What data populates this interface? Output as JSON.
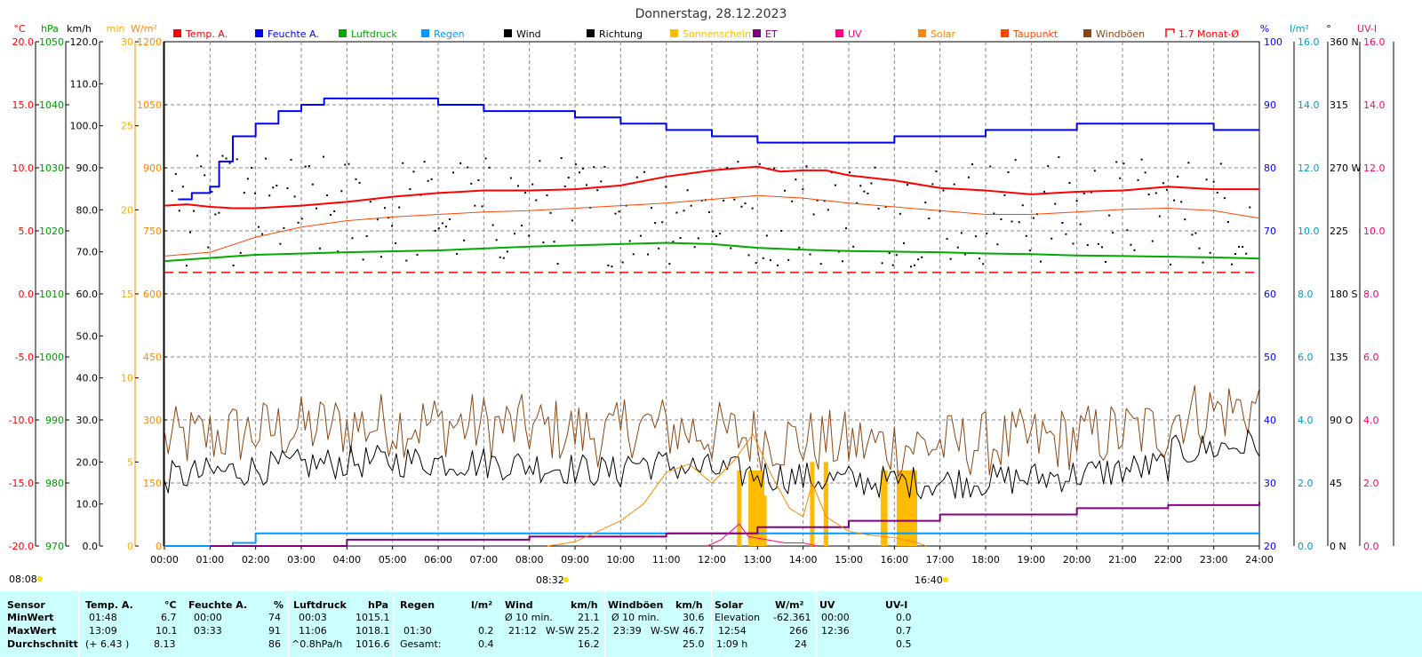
{
  "chart_data": {
    "type": "line",
    "title": "Donnerstag, 28.12.2023",
    "x": {
      "ticks": [
        "00:00",
        "01:00",
        "02:00",
        "03:00",
        "04:00",
        "05:00",
        "06:00",
        "07:00",
        "08:00",
        "09:00",
        "10:00",
        "11:00",
        "12:00",
        "13:00",
        "14:00",
        "15:00",
        "16:00",
        "17:00",
        "18:00",
        "19:00",
        "20:00",
        "21:00",
        "22:00",
        "23:00",
        "24:00"
      ],
      "range_hours": [
        0,
        24
      ]
    },
    "left_axes": [
      {
        "unit": "°C",
        "color": "#ff0000",
        "min": -20,
        "max": 20,
        "ticks": [
          "20.0",
          "15.0",
          "10.0",
          "5.0",
          "0.0",
          "-5.0",
          "-10.0",
          "-15.0",
          "-20.0"
        ]
      },
      {
        "unit": "hPa",
        "color": "#009900",
        "min": 970,
        "max": 1050,
        "ticks": [
          "1050",
          "1040",
          "1030",
          "1020",
          "1010",
          "1000",
          "990",
          "980",
          "970"
        ]
      },
      {
        "unit": "km/h",
        "color": "#000000",
        "min": 0,
        "max": 120,
        "ticks": [
          "120.0",
          "110.0",
          "100.0",
          "90.0",
          "80.0",
          "70.0",
          "60.0",
          "50.0",
          "40.0",
          "30.0",
          "20.0",
          "10.0",
          "0.0"
        ]
      },
      {
        "unit": "min",
        "color": "#ffaa00",
        "min": 0,
        "max": 30,
        "ticks": [
          "30",
          "25",
          "20",
          "15",
          "10",
          "5",
          "0"
        ]
      },
      {
        "unit": "W/m²",
        "color": "#ff8800",
        "min": 0,
        "max": 1200,
        "ticks": [
          "1200",
          "1050",
          "900",
          "750",
          "600",
          "450",
          "300",
          "150",
          "0"
        ]
      }
    ],
    "right_axes": [
      {
        "unit": "%",
        "color": "#0000ff",
        "min": 20,
        "max": 100,
        "ticks": [
          "100",
          "90",
          "80",
          "70",
          "60",
          "50",
          "40",
          "30",
          "20"
        ]
      },
      {
        "unit": "l/m²",
        "color": "#0099cc",
        "min": 0,
        "max": 16,
        "ticks": [
          "16.0",
          "14.0",
          "12.0",
          "10.0",
          "8.0",
          "6.0",
          "4.0",
          "2.0",
          "0.0"
        ]
      },
      {
        "unit": "°",
        "color": "#000000",
        "min": 0,
        "max": 360,
        "ticks": [
          "360 N",
          "315",
          "270 W",
          "225",
          "180 S",
          "135",
          "90 O",
          "45",
          "0 N"
        ]
      },
      {
        "unit": "UV-I",
        "color": "#ff0066",
        "min": 0,
        "max": 16,
        "ticks": [
          "16.0",
          "14.0",
          "12.0",
          "10.0",
          "8.0",
          "6.0",
          "4.0",
          "2.0",
          "0.0"
        ]
      }
    ],
    "legend": [
      {
        "name": "Temp. A.",
        "color": "#ff0000"
      },
      {
        "name": "Feuchte A.",
        "color": "#0000ff"
      },
      {
        "name": "Luftdruck",
        "color": "#00aa00"
      },
      {
        "name": "Regen",
        "color": "#0099ff"
      },
      {
        "name": "Wind",
        "color": "#000000"
      },
      {
        "name": "Richtung",
        "color": "#000000"
      },
      {
        "name": "Sonnenschein",
        "color": "#ffbb00"
      },
      {
        "name": "ET",
        "color": "#800080"
      },
      {
        "name": "UV",
        "color": "#ff0088"
      },
      {
        "name": "Solar",
        "color": "#ff8800"
      },
      {
        "name": "Taupunkt",
        "color": "#ff4400"
      },
      {
        "name": "Windböen",
        "color": "#8b4513"
      },
      {
        "name": "1.7 Monat-Ø",
        "color": "#ff0000"
      }
    ],
    "sun": {
      "sunrise_time": "08:08",
      "solar_noon_time": "08:32",
      "sunset_time": "16:40"
    },
    "monthly_avg_temp": 1.7,
    "series": [
      {
        "name": "Temp. A.",
        "axis": "°C",
        "points": [
          [
            0,
            7.0
          ],
          [
            0.5,
            7.1
          ],
          [
            1,
            6.9
          ],
          [
            1.5,
            6.8
          ],
          [
            2,
            6.8
          ],
          [
            3,
            7.0
          ],
          [
            4,
            7.3
          ],
          [
            5,
            7.7
          ],
          [
            6,
            8.0
          ],
          [
            7,
            8.2
          ],
          [
            8,
            8.2
          ],
          [
            9,
            8.3
          ],
          [
            10,
            8.6
          ],
          [
            11,
            9.3
          ],
          [
            12,
            9.8
          ],
          [
            13,
            10.1
          ],
          [
            13.5,
            9.7
          ],
          [
            14,
            9.8
          ],
          [
            14.5,
            9.8
          ],
          [
            15,
            9.4
          ],
          [
            16,
            9.0
          ],
          [
            17,
            8.4
          ],
          [
            18,
            8.2
          ],
          [
            19,
            7.9
          ],
          [
            20,
            8.1
          ],
          [
            21,
            8.2
          ],
          [
            22,
            8.5
          ],
          [
            23,
            8.3
          ],
          [
            24,
            8.3
          ]
        ]
      },
      {
        "name": "Feuchte A.",
        "axis": "%",
        "points": [
          [
            0.3,
            75
          ],
          [
            0.6,
            76
          ],
          [
            1,
            77
          ],
          [
            1.2,
            81
          ],
          [
            1.5,
            85
          ],
          [
            2,
            87
          ],
          [
            2.5,
            89
          ],
          [
            3,
            90
          ],
          [
            3.5,
            91
          ],
          [
            4,
            91
          ],
          [
            5,
            91
          ],
          [
            6,
            90
          ],
          [
            7,
            89
          ],
          [
            8,
            89
          ],
          [
            9,
            88
          ],
          [
            10,
            87
          ],
          [
            11,
            86
          ],
          [
            12,
            85
          ],
          [
            13,
            84
          ],
          [
            14,
            84
          ],
          [
            15,
            84
          ],
          [
            16,
            85
          ],
          [
            17,
            85
          ],
          [
            18,
            86
          ],
          [
            19,
            86
          ],
          [
            20,
            87
          ],
          [
            21,
            87
          ],
          [
            22,
            87
          ],
          [
            23,
            86
          ],
          [
            24,
            86
          ]
        ]
      },
      {
        "name": "Luftdruck",
        "axis": "hPa",
        "points": [
          [
            0,
            1015.2
          ],
          [
            2,
            1016.2
          ],
          [
            4,
            1016.6
          ],
          [
            6,
            1016.9
          ],
          [
            8,
            1017.5
          ],
          [
            10,
            1017.9
          ],
          [
            11,
            1018.1
          ],
          [
            12,
            1017.9
          ],
          [
            13,
            1017.3
          ],
          [
            14,
            1017.0
          ],
          [
            15,
            1016.8
          ],
          [
            16,
            1016.7
          ],
          [
            17,
            1016.6
          ],
          [
            18,
            1016.4
          ],
          [
            19,
            1016.3
          ],
          [
            20,
            1016.1
          ],
          [
            21,
            1016.0
          ],
          [
            22,
            1015.9
          ],
          [
            23,
            1015.8
          ],
          [
            24,
            1015.6
          ]
        ]
      },
      {
        "name": "Taupunkt",
        "axis": "°C",
        "points": [
          [
            0,
            3.0
          ],
          [
            1,
            3.3
          ],
          [
            2,
            4.5
          ],
          [
            3,
            5.3
          ],
          [
            4,
            5.8
          ],
          [
            5,
            6.1
          ],
          [
            6,
            6.3
          ],
          [
            7,
            6.5
          ],
          [
            8,
            6.6
          ],
          [
            9,
            6.8
          ],
          [
            10,
            7.0
          ],
          [
            11,
            7.2
          ],
          [
            12,
            7.5
          ],
          [
            13,
            7.8
          ],
          [
            14,
            7.6
          ],
          [
            15,
            7.2
          ],
          [
            16,
            6.9
          ],
          [
            17,
            6.6
          ],
          [
            18,
            6.3
          ],
          [
            19,
            6.3
          ],
          [
            20,
            6.5
          ],
          [
            21,
            6.7
          ],
          [
            22,
            6.8
          ],
          [
            23,
            6.6
          ],
          [
            24,
            6.0
          ]
        ]
      },
      {
        "name": "Regen",
        "axis": "l/m²",
        "points": [
          [
            0,
            0
          ],
          [
            1.5,
            0
          ],
          [
            1.5,
            0.1
          ],
          [
            2,
            0.1
          ],
          [
            2,
            0.4
          ],
          [
            24,
            0.4
          ]
        ]
      },
      {
        "name": "ET",
        "axis": "l/m²",
        "points": [
          [
            1,
            0
          ],
          [
            4,
            0.2
          ],
          [
            8,
            0.3
          ],
          [
            11,
            0.4
          ],
          [
            13,
            0.6
          ],
          [
            15,
            0.8
          ],
          [
            17,
            1.0
          ],
          [
            20,
            1.2
          ],
          [
            22,
            1.3
          ],
          [
            24,
            1.4
          ]
        ]
      },
      {
        "name": "Solar",
        "axis": "W/m²",
        "points": [
          [
            8.4,
            0
          ],
          [
            9,
            10
          ],
          [
            10,
            60
          ],
          [
            10.5,
            100
          ],
          [
            11,
            175
          ],
          [
            11.5,
            195
          ],
          [
            12,
            150
          ],
          [
            12.5,
            205
          ],
          [
            12.9,
            266
          ],
          [
            13.3,
            170
          ],
          [
            13.7,
            90
          ],
          [
            14,
            70
          ],
          [
            14.2,
            150
          ],
          [
            14.5,
            70
          ],
          [
            15,
            35
          ],
          [
            15.5,
            25
          ],
          [
            16,
            20
          ],
          [
            16.5,
            8
          ],
          [
            16.7,
            0
          ]
        ]
      },
      {
        "name": "UV",
        "axis": "UV-I",
        "points": [
          [
            11.9,
            0
          ],
          [
            12.2,
            0.2
          ],
          [
            12.6,
            0.7
          ],
          [
            12.8,
            0.3
          ],
          [
            13.2,
            0.2
          ],
          [
            13.6,
            0.1
          ],
          [
            14,
            0.1
          ],
          [
            14.3,
            0
          ]
        ]
      },
      {
        "name": "Sonnenschein",
        "axis": "min",
        "bars": [
          [
            12.55,
            12.65,
            4.5
          ],
          [
            12.8,
            13.15,
            4.5
          ],
          [
            13.15,
            13.2,
            3
          ],
          [
            14.15,
            14.25,
            5
          ],
          [
            14.45,
            14.55,
            5
          ],
          [
            15.7,
            15.85,
            4.5
          ],
          [
            16.05,
            16.5,
            4.5
          ]
        ]
      },
      {
        "name": "Wind",
        "axis": "km/h",
        "summary": {
          "min": 5,
          "max": 30.6,
          "mean": 16.2
        }
      },
      {
        "name": "Windböen",
        "axis": "km/h",
        "summary": {
          "min": 10,
          "max": 46.7,
          "mean": 25.0
        }
      },
      {
        "name": "Richtung",
        "axis": "°",
        "summary": {
          "min": 180,
          "max": 280,
          "dominant": "W-SW"
        }
      }
    ]
  },
  "stats": {
    "row_labels": [
      "Sensor",
      "MinWert",
      "MaxWert",
      "Durchschnitt"
    ],
    "temp": {
      "header": "Temp. A.",
      "unit": "°C",
      "min_time": "01:48",
      "min": "6.7",
      "max_time": "13:09",
      "max": "10.1",
      "avg_note": "(+ 6.43 )",
      "avg": "8.13"
    },
    "feuchte": {
      "header": "Feuchte A.",
      "unit": "%",
      "min_time": "00:00",
      "min": "74",
      "max_time": "03:33",
      "max": "91",
      "avg": "86"
    },
    "luftdruck": {
      "header": "Luftdruck",
      "unit": "hPa",
      "min_time": "00:03",
      "min": "1015.1",
      "max_time": "11:06",
      "max": "1018.1",
      "avg_note": "^0.8hPa/h",
      "avg": "1016.6"
    },
    "regen": {
      "header": "Regen",
      "unit": "l/m²",
      "max_time": "01:30",
      "max": "0.2",
      "total_label": "Gesamt:",
      "total": "0.4"
    },
    "wind": {
      "header": "Wind",
      "unit": "km/h",
      "min_label": "Ø 10 min.",
      "min": "21.1",
      "max_time": "21:12",
      "max_dir": "W-SW",
      "max": "25.2",
      "avg": "16.2"
    },
    "windboeen": {
      "header": "Windböen",
      "unit": "km/h",
      "min_label": "Ø 10 min.",
      "min": "30.6",
      "max_time": "23:39",
      "max_dir": "W-SW",
      "max": "46.7",
      "avg": "25.0"
    },
    "solar": {
      "header": "Solar",
      "unit": "W/m²",
      "min_label": "Elevation",
      "min": "-62.361",
      "max_time": "12:54",
      "max": "266",
      "avg_note": "1:09 h",
      "avg": "24"
    },
    "uv": {
      "header": "UV",
      "unit": "UV-I",
      "min_time": "00:00",
      "min": "0.0",
      "max_time": "12:36",
      "max": "0.7",
      "avg": "0.5"
    }
  }
}
